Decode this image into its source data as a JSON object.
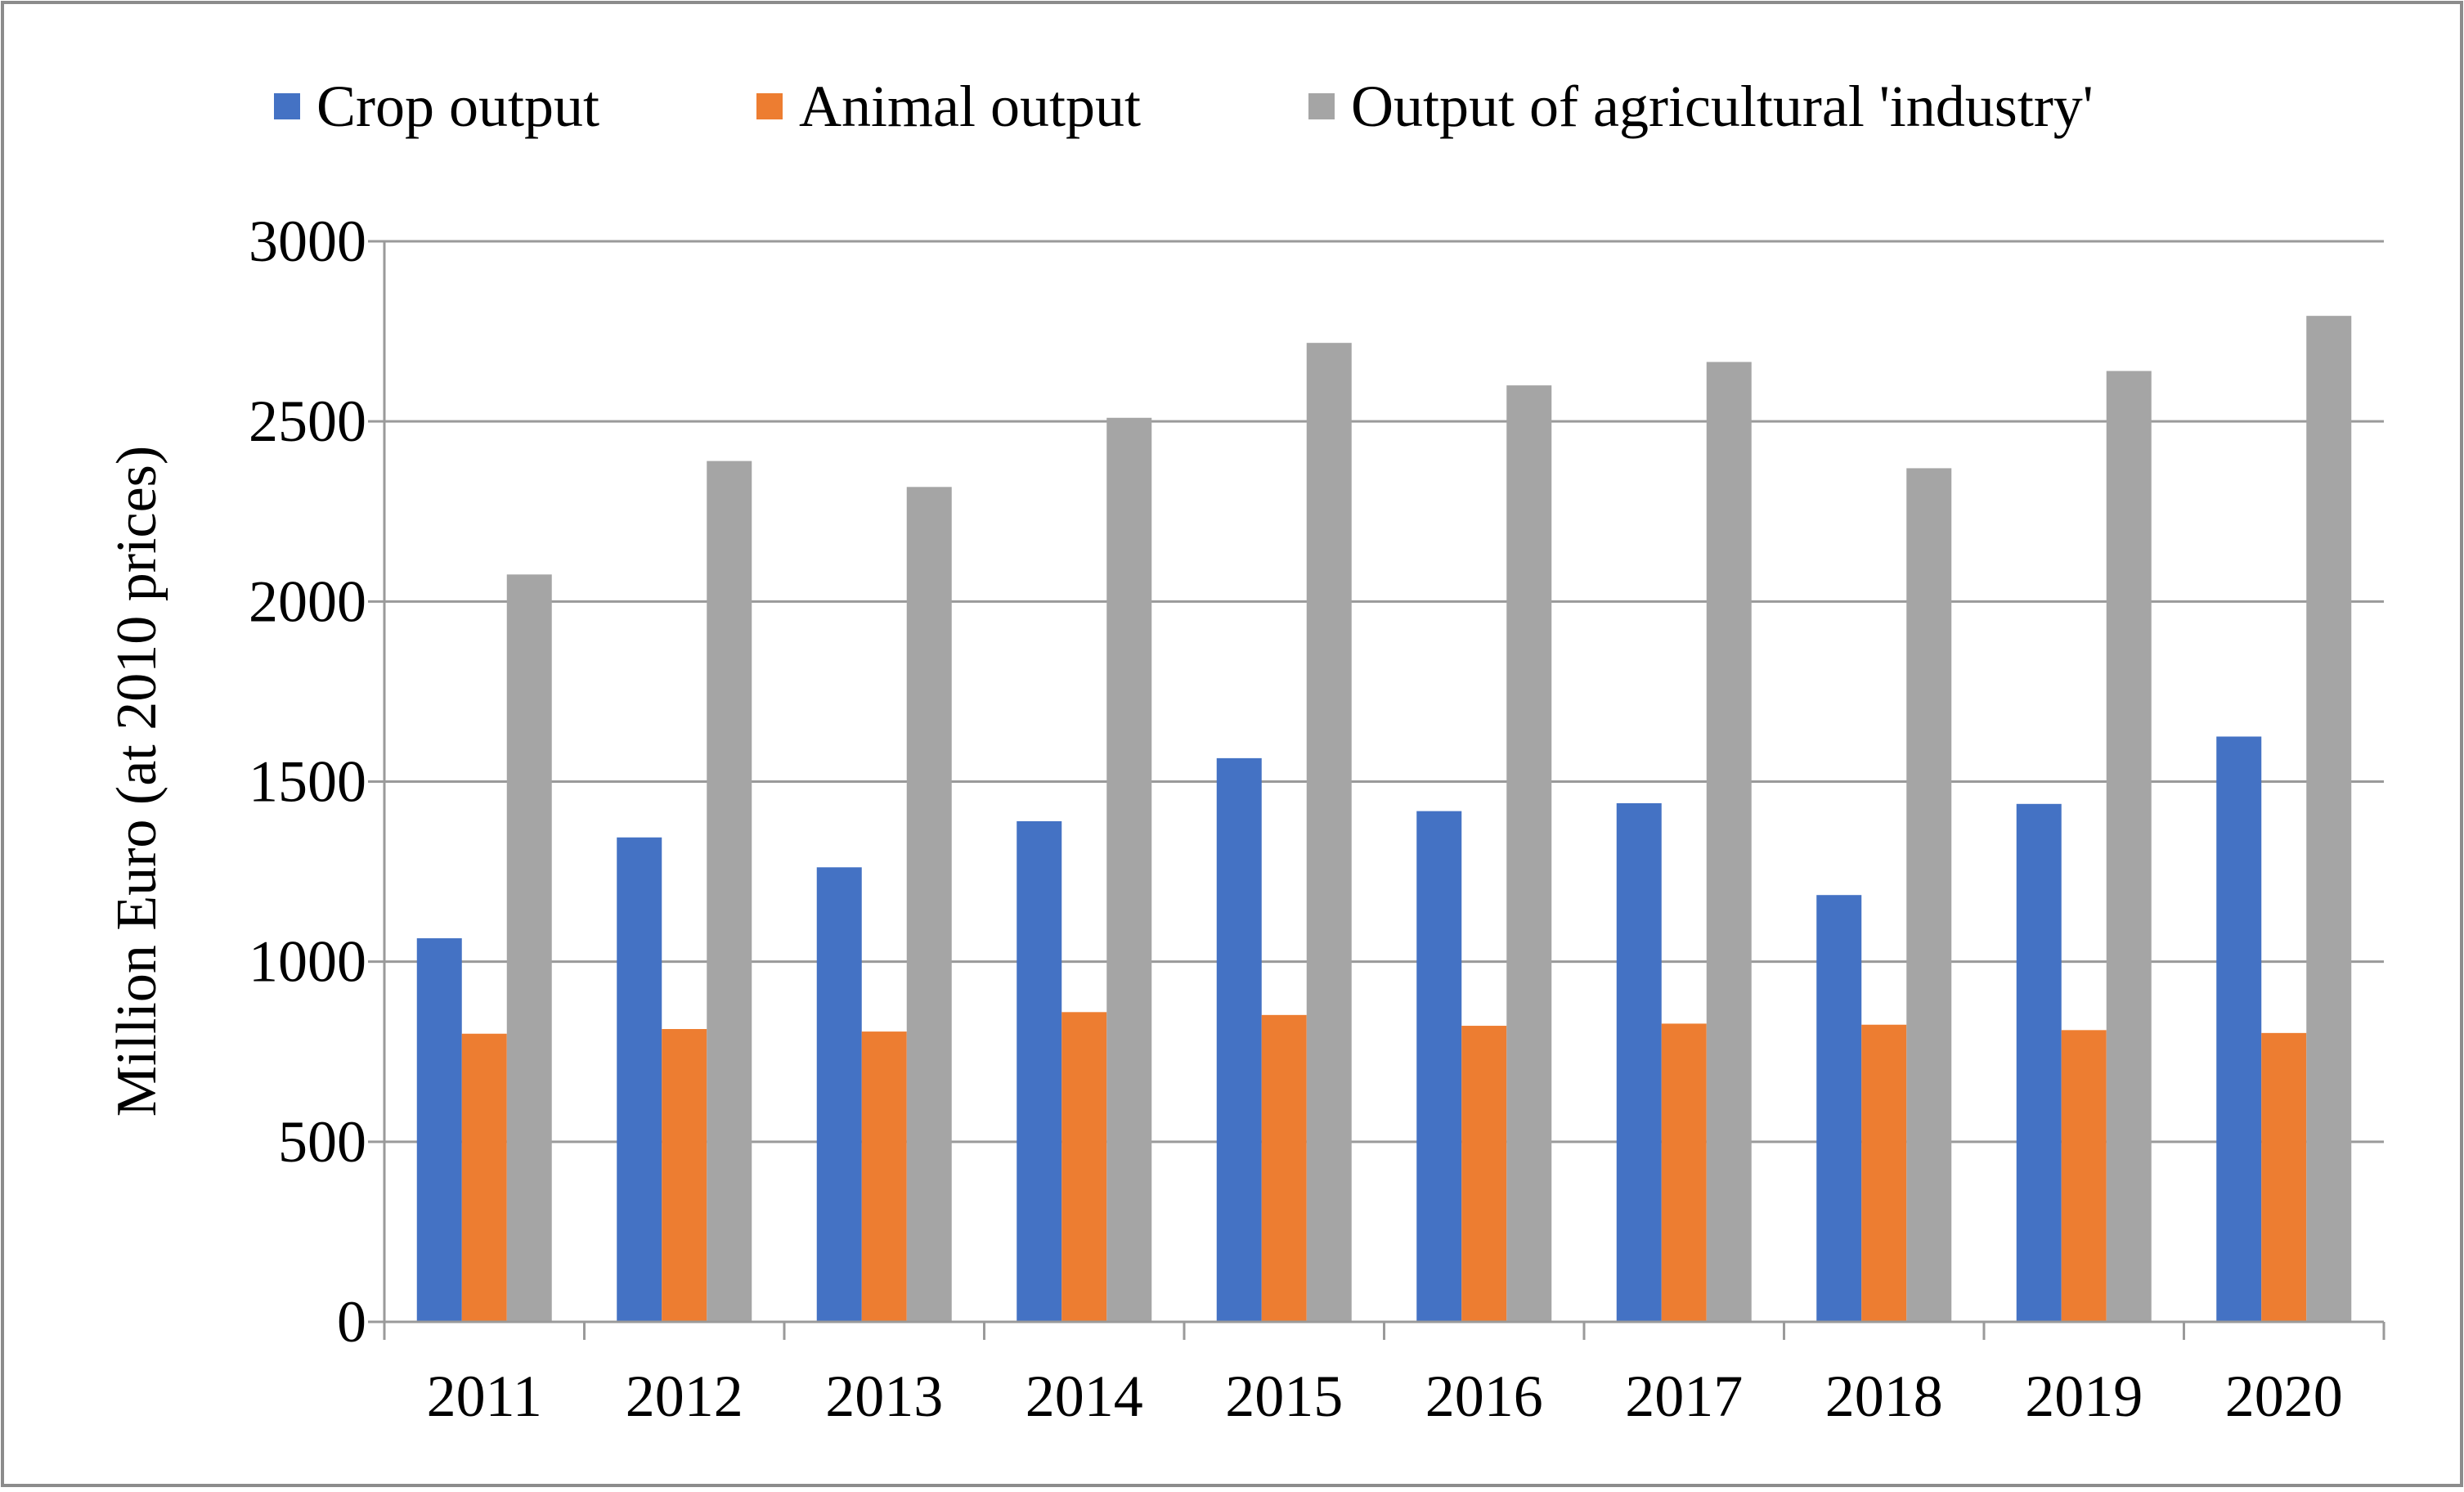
{
  "chart_data": {
    "type": "bar",
    "title": "",
    "xlabel": "",
    "ylabel": "Million Euro (at 2010 prices)",
    "ylim": [
      0,
      3000
    ],
    "yticks": [
      "0",
      "500",
      "1000",
      "1500",
      "2000",
      "2500",
      "3000"
    ],
    "grid": true,
    "legend_position": "top",
    "categories": [
      "2011",
      "2012",
      "2013",
      "2014",
      "2015",
      "2016",
      "2017",
      "2018",
      "2019",
      "2020"
    ],
    "series": [
      {
        "name": "Crop output",
        "color": "#4472C4",
        "values": [
          1065,
          1345,
          1262,
          1390,
          1565,
          1418,
          1440,
          1185,
          1438,
          1625
        ]
      },
      {
        "name": "Animal output",
        "color": "#ED7D31",
        "values": [
          800,
          813,
          806,
          860,
          852,
          822,
          828,
          825,
          810,
          802
        ]
      },
      {
        "name": "Output of agricultural 'industry'",
        "color": "#A5A5A5",
        "values": [
          2075,
          2390,
          2318,
          2510,
          2718,
          2600,
          2665,
          2370,
          2640,
          2793
        ]
      }
    ]
  }
}
